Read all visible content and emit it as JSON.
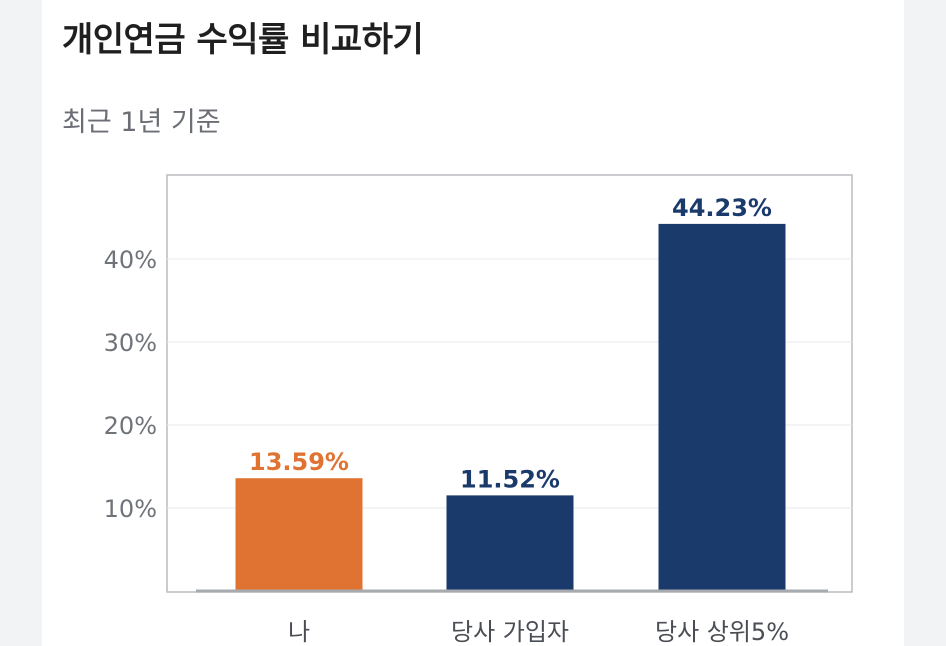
{
  "header": {
    "title": "개인연금 수익률 비교하기",
    "subtitle": "최근 1년 기준"
  },
  "colors": {
    "highlight": "#e07332",
    "primary": "#1a3a6b",
    "frame": "#b9bcc0",
    "grid": "#e6e8eb",
    "baseline": "#a7aaae"
  },
  "chart_data": {
    "type": "bar",
    "categories": [
      "나",
      "당사 가입자",
      "당사 상위5%"
    ],
    "values": [
      13.59,
      11.52,
      44.23
    ],
    "data_labels": [
      "13.59%",
      "11.52%",
      "44.23%"
    ],
    "highlight_index": 0,
    "y_ticks": [
      10,
      20,
      30,
      40
    ],
    "y_tick_labels": [
      "10%",
      "20%",
      "30%",
      "40%"
    ],
    "ylim": [
      0,
      50
    ],
    "grid": true,
    "legend": "none",
    "xlabel": "",
    "ylabel": ""
  }
}
